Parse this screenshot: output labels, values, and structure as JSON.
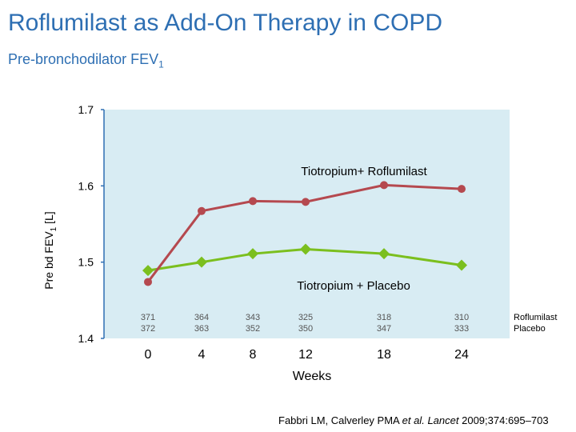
{
  "title": "Roflumilast as Add-On Therapy in COPD",
  "subtitle": {
    "text": "Pre-bronchodilator FEV",
    "sub": "1"
  },
  "citation": {
    "authors": "Fabbri LM, Calverley PMA",
    "etal": "et al.",
    "journal": "Lancet",
    "ref": "2009;374:695–703"
  },
  "colors": {
    "title": "#2e6fb3",
    "plot_bg": "#d8ecf3",
    "axis": "#2e6fb3",
    "roflumilast": "#b5494f",
    "placebo": "#7bbf1e",
    "n_text": "#555555"
  },
  "chart_data": {
    "type": "line",
    "x": [
      0,
      4,
      8,
      12,
      18,
      24
    ],
    "xticklabels": [
      "0",
      "4",
      "8",
      "12",
      "18",
      "24"
    ],
    "xlabel": "Weeks",
    "ylabel": {
      "text": "Pre bd FEV",
      "sub": "1",
      "suffix": " [L]"
    },
    "ylim": [
      1.4,
      1.7
    ],
    "yticks": [
      1.4,
      1.5,
      1.6,
      1.7
    ],
    "yticklabels": [
      "1.4",
      "1.5",
      "1.6",
      "1.7"
    ],
    "grid": false,
    "series": [
      {
        "name": "Tiotropium+ Roflumilast",
        "marker": "circle",
        "values": [
          1.474,
          1.567,
          1.58,
          1.579,
          1.601,
          1.596
        ],
        "n_label": "Roflumilast",
        "n": [
          "371",
          "364",
          "343",
          "325",
          "318",
          "310"
        ]
      },
      {
        "name": "Tiotropium + Placebo",
        "marker": "diamond",
        "values": [
          1.489,
          1.5,
          1.511,
          1.517,
          1.511,
          1.496
        ],
        "n_label": "Placebo",
        "n": [
          "372",
          "363",
          "352",
          "350",
          "347",
          "333"
        ]
      }
    ]
  }
}
